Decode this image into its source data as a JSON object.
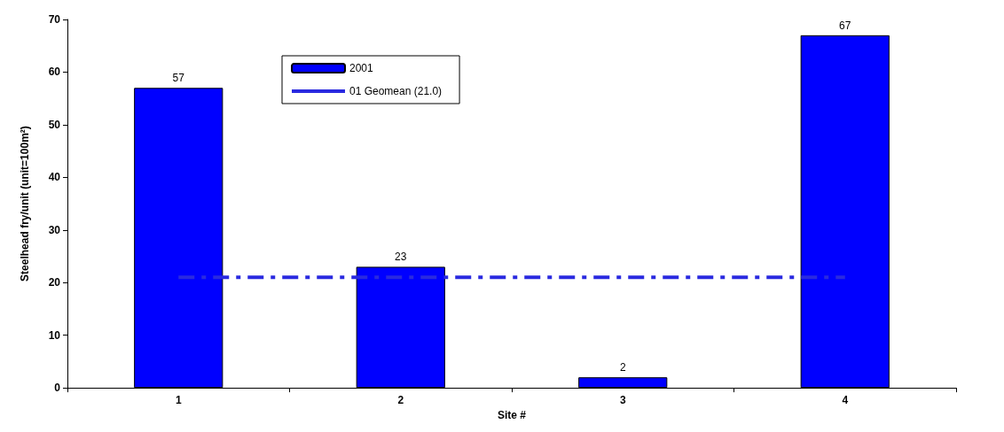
{
  "chart_data": {
    "type": "bar",
    "xlabel": "Site #",
    "ylabel": "Steelhead fry/unit (unit=100m²)",
    "categories": [
      "1",
      "2",
      "3",
      "4"
    ],
    "series": [
      {
        "name": "2001",
        "color": "#0000ff",
        "values": [
          57,
          23,
          2,
          67
        ],
        "value_labels": [
          "57",
          "23",
          "2",
          "67"
        ]
      },
      {
        "name": "01 Geomean (21.0)",
        "type": "line",
        "color": "#2a2ae0",
        "values": [
          21,
          21,
          21,
          21
        ],
        "line_style": "dashed",
        "marker": "none"
      }
    ],
    "ylim": [
      0,
      70
    ],
    "yticks": [
      0,
      10,
      20,
      30,
      40,
      50,
      60,
      70
    ],
    "grid": false,
    "legend": "top left"
  }
}
